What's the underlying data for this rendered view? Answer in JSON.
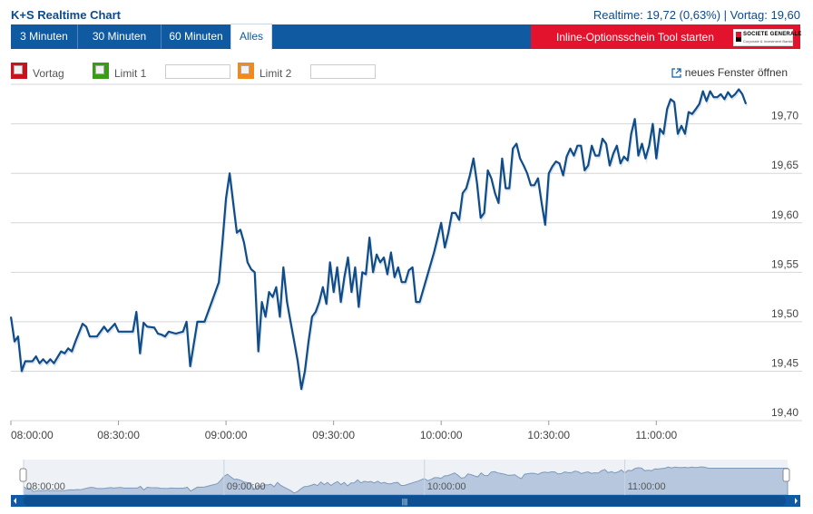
{
  "header": {
    "title": "K+S Realtime Chart",
    "quote": "Realtime: 19,72 (0,63%) | Vortag: 19,60"
  },
  "tabs": [
    {
      "label": "3 Minuten"
    },
    {
      "label": "30 Minuten"
    },
    {
      "label": "60 Minuten"
    },
    {
      "label": "Alles"
    }
  ],
  "promo": {
    "label": "Inline-Optionsschein Tool starten",
    "logo_text": "SOCIETE GENERALE",
    "logo_subtext": "Corporate & Investment Banking"
  },
  "options": {
    "vortag": {
      "label": "Vortag",
      "color": "#c8131f"
    },
    "limit1": {
      "label": "Limit 1",
      "color": "#3b9a16",
      "value": ""
    },
    "limit2": {
      "label": "Limit 2",
      "color": "#f08a1c",
      "value": ""
    },
    "new_window": "neues Fenster öffnen"
  },
  "colors": {
    "line": "#0f4c8a",
    "grid": "#d6d6d6",
    "nav_fill": "#b7c8de",
    "nav_bar": "#0f5aa0"
  },
  "chart_data": {
    "type": "line",
    "x_axis": "time",
    "y_ticks": [
      "19,70",
      "19,65",
      "19,60",
      "19,55",
      "19,50",
      "19,45",
      "19,40"
    ],
    "y_tick_values": [
      19.7,
      19.65,
      19.6,
      19.55,
      19.5,
      19.45,
      19.4
    ],
    "x_ticks": [
      "08:00:00",
      "08:30:00",
      "09:00:00",
      "09:30:00",
      "10:00:00",
      "10:30:00",
      "11:00:00"
    ],
    "ylim": [
      19.4,
      19.74
    ],
    "xlim": [
      "08:00:00",
      "11:27:00"
    ],
    "grid": true,
    "series": [
      {
        "values": [
          [
            "08:00",
            19.505
          ],
          [
            "08:01",
            19.48
          ],
          [
            "08:02",
            19.485
          ],
          [
            "08:03",
            19.45
          ],
          [
            "08:04",
            19.46
          ],
          [
            "08:06",
            19.46
          ],
          [
            "08:07",
            19.465
          ],
          [
            "08:08",
            19.458
          ],
          [
            "08:09",
            19.462
          ],
          [
            "08:10",
            19.458
          ],
          [
            "08:11",
            19.462
          ],
          [
            "08:12",
            19.458
          ],
          [
            "08:14",
            19.47
          ],
          [
            "08:15",
            19.468
          ],
          [
            "08:16",
            19.473
          ],
          [
            "08:17",
            19.47
          ],
          [
            "08:18",
            19.48
          ],
          [
            "08:20",
            19.498
          ],
          [
            "08:21",
            19.495
          ],
          [
            "08:22",
            19.485
          ],
          [
            "08:24",
            19.485
          ],
          [
            "08:26",
            19.495
          ],
          [
            "08:27",
            19.49
          ],
          [
            "08:29",
            19.498
          ],
          [
            "08:30",
            19.49
          ],
          [
            "08:32",
            19.49
          ],
          [
            "08:34",
            19.49
          ],
          [
            "08:35",
            19.51
          ],
          [
            "08:36",
            19.468
          ],
          [
            "08:37",
            19.499
          ],
          [
            "08:38",
            19.495
          ],
          [
            "08:40",
            19.494
          ],
          [
            "08:41",
            19.488
          ],
          [
            "08:42",
            19.487
          ],
          [
            "08:43",
            19.485
          ],
          [
            "08:44",
            19.49
          ],
          [
            "08:46",
            19.488
          ],
          [
            "08:48",
            19.49
          ],
          [
            "08:49",
            19.5
          ],
          [
            "08:50",
            19.455
          ],
          [
            "08:52",
            19.5
          ],
          [
            "08:54",
            19.5
          ],
          [
            "08:56",
            19.52
          ],
          [
            "08:58",
            19.54
          ],
          [
            "08:59",
            19.58
          ],
          [
            "09:00",
            19.625
          ],
          [
            "09:01",
            19.65
          ],
          [
            "09:02",
            19.62
          ],
          [
            "09:03",
            19.59
          ],
          [
            "09:04",
            19.593
          ],
          [
            "09:05",
            19.58
          ],
          [
            "09:06",
            19.56
          ],
          [
            "09:07",
            19.553
          ],
          [
            "09:08",
            19.55
          ],
          [
            "09:09",
            19.47
          ],
          [
            "09:10",
            19.52
          ],
          [
            "09:11",
            19.505
          ],
          [
            "09:12",
            19.53
          ],
          [
            "09:13",
            19.525
          ],
          [
            "09:14",
            19.535
          ],
          [
            "09:15",
            19.505
          ],
          [
            "09:16",
            19.555
          ],
          [
            "09:17",
            19.52
          ],
          [
            "09:18",
            19.5
          ],
          [
            "09:19",
            19.48
          ],
          [
            "09:20",
            19.46
          ],
          [
            "09:21",
            19.432
          ],
          [
            "09:22",
            19.45
          ],
          [
            "09:23",
            19.48
          ],
          [
            "09:24",
            19.505
          ],
          [
            "09:25",
            19.51
          ],
          [
            "09:26",
            19.52
          ],
          [
            "09:27",
            19.535
          ],
          [
            "09:28",
            19.518
          ],
          [
            "09:29",
            19.56
          ],
          [
            "09:30",
            19.53
          ],
          [
            "09:31",
            19.555
          ],
          [
            "09:32",
            19.52
          ],
          [
            "09:33",
            19.545
          ],
          [
            "09:34",
            19.565
          ],
          [
            "09:35",
            19.53
          ],
          [
            "09:36",
            19.555
          ],
          [
            "09:37",
            19.515
          ],
          [
            "09:38",
            19.55
          ],
          [
            "09:39",
            19.548
          ],
          [
            "09:40",
            19.585
          ],
          [
            "09:41",
            19.55
          ],
          [
            "09:42",
            19.568
          ],
          [
            "09:43",
            19.56
          ],
          [
            "09:44",
            19.565
          ],
          [
            "09:45",
            19.548
          ],
          [
            "09:46",
            19.57
          ],
          [
            "09:47",
            19.545
          ],
          [
            "09:48",
            19.555
          ],
          [
            "09:49",
            19.54
          ],
          [
            "09:50",
            19.54
          ],
          [
            "09:51",
            19.552
          ],
          [
            "09:52",
            19.555
          ],
          [
            "09:53",
            19.52
          ],
          [
            "09:54",
            19.52
          ],
          [
            "09:56",
            19.545
          ],
          [
            "09:58",
            19.57
          ],
          [
            "09:59",
            19.585
          ],
          [
            "10:00",
            19.6
          ],
          [
            "10:01",
            19.575
          ],
          [
            "10:02",
            19.59
          ],
          [
            "10:03",
            19.61
          ],
          [
            "10:04",
            19.61
          ],
          [
            "10:05",
            19.603
          ],
          [
            "10:06",
            19.63
          ],
          [
            "10:07",
            19.635
          ],
          [
            "10:08",
            19.648
          ],
          [
            "10:09",
            19.665
          ],
          [
            "10:10",
            19.64
          ],
          [
            "10:11",
            19.605
          ],
          [
            "10:12",
            19.61
          ],
          [
            "10:13",
            19.653
          ],
          [
            "10:14",
            19.645
          ],
          [
            "10:15",
            19.63
          ],
          [
            "10:16",
            19.62
          ],
          [
            "10:17",
            19.665
          ],
          [
            "10:18",
            19.635
          ],
          [
            "10:19",
            19.635
          ],
          [
            "10:20",
            19.675
          ],
          [
            "10:21",
            19.68
          ],
          [
            "10:22",
            19.665
          ],
          [
            "10:23",
            19.658
          ],
          [
            "10:24",
            19.65
          ],
          [
            "10:25",
            19.638
          ],
          [
            "10:26",
            19.638
          ],
          [
            "10:27",
            19.645
          ],
          [
            "10:28",
            19.62
          ],
          [
            "10:29",
            19.598
          ],
          [
            "10:30",
            19.65
          ],
          [
            "10:31",
            19.657
          ],
          [
            "10:32",
            19.662
          ],
          [
            "10:33",
            19.66
          ],
          [
            "10:34",
            19.648
          ],
          [
            "10:35",
            19.667
          ],
          [
            "10:36",
            19.675
          ],
          [
            "10:37",
            19.668
          ],
          [
            "10:38",
            19.678
          ],
          [
            "10:39",
            19.678
          ],
          [
            "10:40",
            19.653
          ],
          [
            "10:41",
            19.658
          ],
          [
            "10:42",
            19.678
          ],
          [
            "10:43",
            19.668
          ],
          [
            "10:44",
            19.668
          ],
          [
            "10:45",
            19.685
          ],
          [
            "10:46",
            19.68
          ],
          [
            "10:47",
            19.658
          ],
          [
            "10:48",
            19.67
          ],
          [
            "10:49",
            19.678
          ],
          [
            "10:50",
            19.66
          ],
          [
            "10:51",
            19.667
          ],
          [
            "10:52",
            19.663
          ],
          [
            "10:53",
            19.69
          ],
          [
            "10:54",
            19.705
          ],
          [
            "10:55",
            19.668
          ],
          [
            "10:56",
            19.68
          ],
          [
            "10:57",
            19.665
          ],
          [
            "10:58",
            19.678
          ],
          [
            "10:59",
            19.7
          ],
          [
            "11:00",
            19.665
          ],
          [
            "11:01",
            19.695
          ],
          [
            "11:02",
            19.69
          ],
          [
            "11:03",
            19.715
          ],
          [
            "11:04",
            19.725
          ],
          [
            "11:05",
            19.722
          ],
          [
            "11:06",
            19.69
          ],
          [
            "11:07",
            19.698
          ],
          [
            "11:08",
            19.69
          ],
          [
            "11:09",
            19.712
          ],
          [
            "11:10",
            19.71
          ],
          [
            "11:11",
            19.715
          ],
          [
            "11:12",
            19.72
          ],
          [
            "11:13",
            19.733
          ],
          [
            "11:14",
            19.723
          ],
          [
            "11:15",
            19.733
          ],
          [
            "11:16",
            19.727
          ],
          [
            "11:17",
            19.727
          ],
          [
            "11:18",
            19.73
          ],
          [
            "11:19",
            19.725
          ],
          [
            "11:20",
            19.732
          ],
          [
            "11:21",
            19.727
          ],
          [
            "11:22",
            19.73
          ],
          [
            "11:23",
            19.735
          ],
          [
            "11:24",
            19.73
          ],
          [
            "11:25",
            19.72
          ]
        ]
      }
    ]
  },
  "navigator": {
    "x_ticks": [
      "08:00:00",
      "09:00:00",
      "10:00:00",
      "11:00:00"
    ],
    "scroll_handle": "|||"
  }
}
